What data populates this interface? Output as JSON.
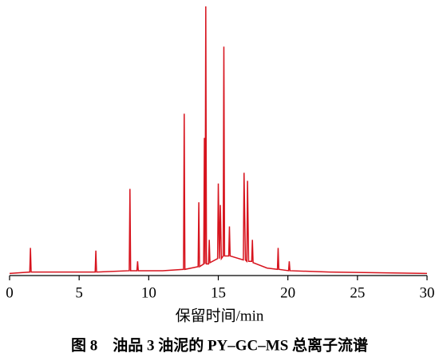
{
  "chart_data": {
    "type": "line",
    "title": "图 8　油品 3 油泥的 PY–GC–MS 总离子流谱",
    "x_label": "保留时间/min",
    "x": [
      0.0,
      1.45,
      1.5,
      1.55,
      3,
      6.15,
      6.2,
      6.25,
      8.6,
      8.65,
      8.7,
      9.15,
      9.2,
      9.25,
      11,
      12.5,
      12.55,
      12.6,
      13.55,
      13.6,
      13.65,
      13.95,
      14.0,
      14.05,
      14.1,
      14.15,
      14.3,
      14.35,
      14.4,
      14.95,
      15.0,
      15.08,
      15.15,
      15.22,
      15.35,
      15.4,
      15.45,
      15.75,
      15.8,
      15.85,
      16.8,
      16.85,
      16.95,
      17.05,
      17.1,
      17.18,
      17.4,
      17.45,
      17.5,
      18.5,
      19.25,
      19.3,
      19.35,
      20.05,
      20.1,
      20.15,
      23,
      30
    ],
    "values": [
      0.5,
      1,
      10,
      1,
      1,
      1,
      9,
      1,
      1.5,
      32,
      1.5,
      1.5,
      5,
      1.5,
      1.5,
      2,
      60,
      2,
      3,
      27,
      3,
      4,
      51,
      4,
      100,
      4,
      4,
      13,
      4.5,
      6,
      34,
      6,
      26,
      6,
      7,
      85,
      7,
      7,
      18,
      7,
      5.5,
      38,
      5.5,
      5,
      35,
      5,
      5,
      13,
      4.5,
      2.5,
      2,
      10,
      2,
      1.5,
      5,
      1.5,
      1,
      0.5
    ],
    "color": "#d7141e",
    "xlim": [
      0,
      30
    ],
    "ylim": [
      0,
      100
    ],
    "xticks": [
      0,
      5,
      10,
      15,
      20,
      25,
      30
    ]
  }
}
